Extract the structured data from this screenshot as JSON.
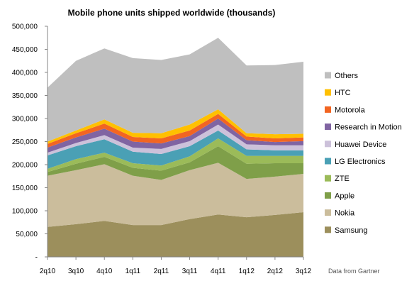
{
  "chart_data": {
    "type": "area",
    "stacked": true,
    "title": "Mobile phone units shipped worldwide (thousands)",
    "source_note": "Data from Gartner",
    "categories": [
      "2q10",
      "3q10",
      "4q10",
      "1q11",
      "2q11",
      "3q11",
      "4q11",
      "1q12",
      "2q12",
      "3q12"
    ],
    "y_ticks": [
      "-",
      "50,000",
      "100,000",
      "150,000",
      "200,000",
      "250,000",
      "300,000",
      "350,000",
      "400,000",
      "450,000",
      "500,000"
    ],
    "ylim": [
      0,
      500000
    ],
    "grid": false,
    "legend_position": "right",
    "series": [
      {
        "name": "Samsung",
        "color": "#9c8f5c",
        "values": [
          65000,
          71000,
          78000,
          69000,
          69000,
          82000,
          92000,
          86000,
          91000,
          97000
        ]
      },
      {
        "name": "Nokia",
        "color": "#cbbd9c",
        "values": [
          111000,
          117000,
          123000,
          107000,
          98000,
          106000,
          112000,
          83000,
          83000,
          83000
        ]
      },
      {
        "name": "Apple",
        "color": "#7f9f49",
        "values": [
          8000,
          14000,
          16000,
          17000,
          20000,
          17000,
          36000,
          33000,
          29000,
          23000
        ]
      },
      {
        "name": "ZTE",
        "color": "#9bbb59",
        "values": [
          7000,
          10000,
          9000,
          10000,
          11000,
          13000,
          17000,
          17000,
          16000,
          16000
        ]
      },
      {
        "name": "LG Electronics",
        "color": "#4aa0b5",
        "values": [
          29000,
          28000,
          29000,
          25000,
          25000,
          22000,
          17000,
          14000,
          12000,
          12000
        ]
      },
      {
        "name": "Huawei Device",
        "color": "#ccc1da",
        "values": [
          6000,
          7000,
          9000,
          9000,
          11000,
          11000,
          13000,
          11000,
          11000,
          11000
        ]
      },
      {
        "name": "Research in Motion",
        "color": "#8064a2",
        "values": [
          11000,
          12000,
          14000,
          13000,
          12000,
          11000,
          13000,
          9000,
          7000,
          9000
        ]
      },
      {
        "name": "Motorola",
        "color": "#f26522",
        "values": [
          8000,
          9000,
          11000,
          10000,
          11000,
          12000,
          10000,
          8000,
          8000,
          8000
        ]
      },
      {
        "name": "HTC",
        "color": "#ffc000",
        "values": [
          5000,
          6000,
          9000,
          9000,
          11000,
          13000,
          10000,
          7000,
          9000,
          8000
        ]
      },
      {
        "name": "Others",
        "color": "#bfbfbf",
        "values": [
          117000,
          151000,
          154000,
          162000,
          159000,
          152000,
          155000,
          147000,
          150000,
          156000
        ]
      }
    ]
  }
}
